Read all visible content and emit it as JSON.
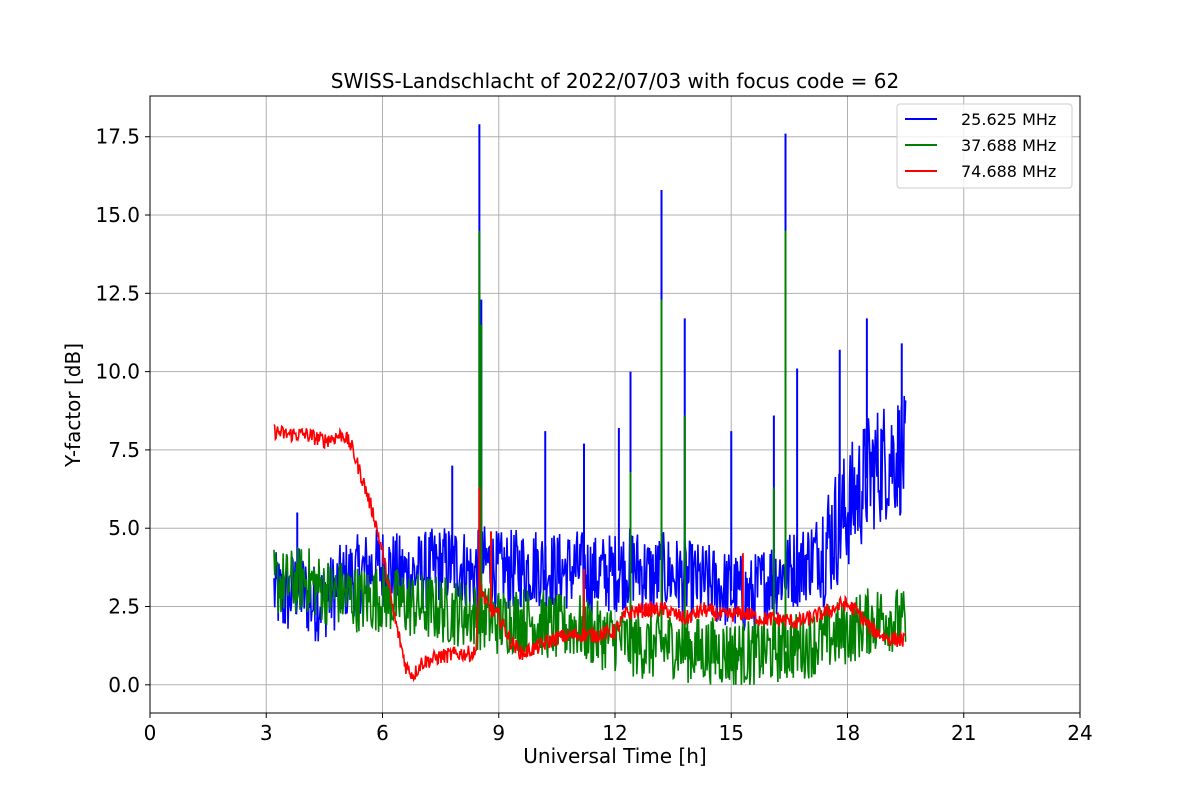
{
  "chart_data": {
    "type": "line",
    "title": "SWISS-Landschlacht of 2022/07/03 with focus code = 62",
    "xlabel": "Universal Time [h]",
    "ylabel": "Y-factor [dB]",
    "xlim": [
      0,
      24
    ],
    "ylim": [
      -0.9,
      18.8
    ],
    "xticks": [
      0,
      3,
      6,
      9,
      12,
      15,
      18,
      21,
      24
    ],
    "xtick_labels": [
      "0",
      "3",
      "6",
      "9",
      "12",
      "15",
      "18",
      "21",
      "24"
    ],
    "yticks": [
      0.0,
      2.5,
      5.0,
      7.5,
      10.0,
      12.5,
      15.0,
      17.5
    ],
    "ytick_labels": [
      "0.0",
      "2.5",
      "5.0",
      "7.5",
      "10.0",
      "12.5",
      "15.0",
      "17.5"
    ],
    "grid": true,
    "legend_position": "top-right",
    "series": [
      {
        "name": "25.625 MHz",
        "color": "#0000ff",
        "x": [
          3.2,
          3.5,
          3.8,
          4.2,
          4.6,
          5.0,
          5.5,
          6.0,
          6.5,
          7.0,
          7.5,
          8.0,
          8.3,
          8.5,
          8.7,
          9.0,
          9.5,
          10.0,
          10.5,
          11.0,
          11.5,
          12.0,
          12.5,
          13.0,
          13.2,
          13.5,
          14.0,
          14.5,
          15.0,
          15.5,
          16.0,
          16.4,
          16.8,
          17.2,
          17.6,
          18.0,
          18.3,
          18.6,
          19.0,
          19.3,
          19.5
        ],
        "y": [
          3.0,
          2.7,
          3.2,
          2.6,
          2.8,
          3.3,
          3.6,
          3.8,
          3.5,
          3.6,
          3.8,
          3.9,
          3.5,
          3.7,
          3.9,
          3.6,
          3.7,
          3.8,
          3.6,
          3.7,
          3.5,
          3.6,
          3.8,
          3.4,
          3.6,
          3.5,
          3.3,
          3.2,
          3.0,
          2.8,
          3.4,
          3.6,
          3.8,
          4.2,
          4.8,
          5.6,
          6.2,
          6.8,
          7.2,
          7.4,
          7.2
        ],
        "spikes": [
          {
            "x": 3.8,
            "y": 5.5
          },
          {
            "x": 7.8,
            "y": 7.0
          },
          {
            "x": 8.5,
            "y": 17.9
          },
          {
            "x": 8.55,
            "y": 12.3
          },
          {
            "x": 10.2,
            "y": 8.1
          },
          {
            "x": 11.2,
            "y": 7.7
          },
          {
            "x": 12.1,
            "y": 8.2
          },
          {
            "x": 12.4,
            "y": 10.0
          },
          {
            "x": 13.2,
            "y": 15.8
          },
          {
            "x": 13.8,
            "y": 11.7
          },
          {
            "x": 15.0,
            "y": 8.1
          },
          {
            "x": 16.1,
            "y": 8.6
          },
          {
            "x": 16.4,
            "y": 17.6
          },
          {
            "x": 16.7,
            "y": 10.1
          },
          {
            "x": 17.8,
            "y": 10.7
          },
          {
            "x": 18.5,
            "y": 11.7
          },
          {
            "x": 19.4,
            "y": 10.9
          }
        ]
      },
      {
        "name": "37.688 MHz",
        "color": "#008000",
        "x": [
          3.2,
          3.5,
          4.0,
          4.5,
          5.0,
          5.5,
          6.0,
          6.5,
          7.0,
          7.5,
          8.0,
          8.5,
          9.0,
          9.5,
          10.0,
          10.5,
          11.0,
          11.5,
          12.0,
          12.5,
          13.0,
          13.5,
          14.0,
          14.5,
          15.0,
          15.5,
          16.0,
          16.5,
          17.0,
          17.5,
          18.0,
          18.5,
          19.0,
          19.5
        ],
        "y": [
          3.3,
          3.2,
          3.4,
          3.0,
          2.9,
          2.7,
          2.8,
          2.6,
          2.5,
          2.4,
          2.3,
          2.2,
          2.0,
          2.1,
          2.0,
          1.8,
          1.9,
          1.6,
          1.5,
          1.3,
          1.2,
          1.3,
          1.1,
          1.1,
          1.0,
          1.0,
          1.1,
          1.2,
          1.3,
          1.5,
          1.7,
          2.0,
          2.2,
          1.9
        ],
        "spikes": [
          {
            "x": 8.5,
            "y": 14.5
          },
          {
            "x": 8.55,
            "y": 11.5
          },
          {
            "x": 12.4,
            "y": 6.8
          },
          {
            "x": 13.2,
            "y": 12.3
          },
          {
            "x": 13.8,
            "y": 8.6
          },
          {
            "x": 16.1,
            "y": 6.3
          },
          {
            "x": 16.4,
            "y": 14.5
          }
        ]
      },
      {
        "name": "74.688 MHz",
        "color": "#ff0000",
        "x": [
          3.2,
          3.5,
          4.0,
          4.5,
          5.0,
          5.2,
          5.5,
          5.8,
          6.0,
          6.3,
          6.6,
          6.8,
          7.0,
          7.5,
          8.0,
          8.4,
          8.5,
          8.7,
          9.0,
          9.3,
          9.6,
          10.0,
          10.5,
          11.0,
          11.5,
          12.0,
          12.3,
          12.8,
          13.3,
          13.8,
          14.3,
          14.8,
          15.3,
          15.8,
          16.2,
          16.7,
          17.2,
          17.6,
          17.9,
          18.2,
          18.6,
          19.0,
          19.5
        ],
        "y": [
          8.1,
          8.0,
          8.0,
          7.8,
          8.0,
          7.6,
          6.5,
          5.3,
          4.2,
          2.2,
          0.6,
          0.3,
          0.7,
          0.9,
          1.0,
          1.0,
          3.2,
          2.5,
          2.2,
          1.4,
          1.0,
          1.2,
          1.5,
          1.6,
          1.6,
          1.7,
          2.3,
          2.4,
          2.4,
          2.1,
          2.4,
          2.2,
          2.3,
          2.1,
          2.1,
          2.0,
          2.2,
          2.4,
          2.6,
          2.4,
          1.8,
          1.5,
          1.4
        ],
        "spikes": [
          {
            "x": 8.5,
            "y": 6.3
          },
          {
            "x": 8.8,
            "y": 4.9
          },
          {
            "x": 11.2,
            "y": 3.7
          },
          {
            "x": 15.3,
            "y": 4.2
          }
        ]
      }
    ]
  }
}
